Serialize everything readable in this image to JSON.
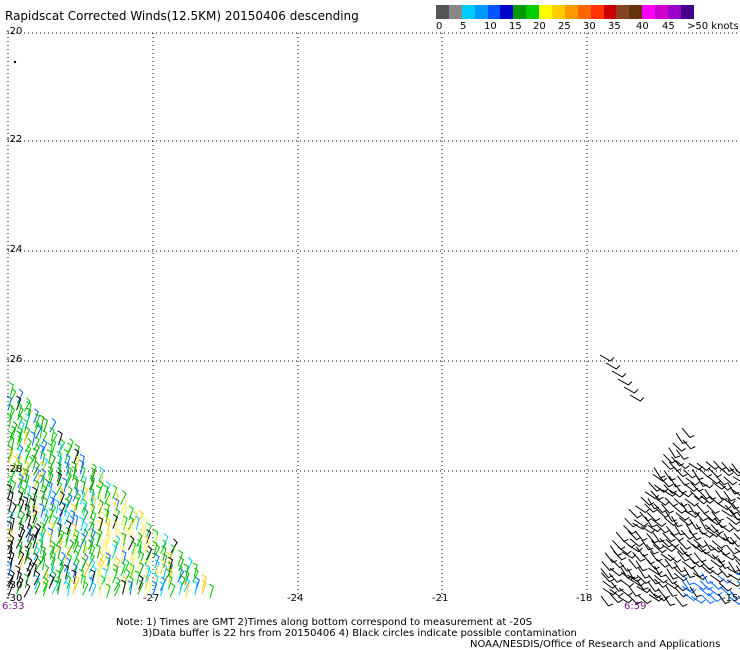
{
  "title": "Rapidscat Corrected Winds(12.5KM) 20150406 descending",
  "scale": {
    "colors": [
      "#555555",
      "#888888",
      "#00ccff",
      "#0099ff",
      "#0055ff",
      "#0000cc",
      "#009900",
      "#00cc00",
      "#ffff00",
      "#ffcc00",
      "#ff9900",
      "#ff6600",
      "#ff3300",
      "#cc0000",
      "#884422",
      "#663311",
      "#ff00ff",
      "#cc00cc",
      "#9900cc",
      "#440088"
    ],
    "labels": [
      "0",
      "5",
      "10",
      "15",
      "20",
      "25",
      "30",
      "35",
      "40",
      "45",
      ">50 knots"
    ]
  },
  "axes": {
    "y_ticks": [
      "-20",
      "-22",
      "-24",
      "-26",
      "-28",
      "-30"
    ],
    "x_ticks": [
      "-27",
      "-24",
      "-21",
      "-18",
      "-15"
    ],
    "x_left_label": "-30"
  },
  "times": {
    "left": "6:33",
    "right": "6:59"
  },
  "notes": {
    "line1": "Note: 1) Times are GMT 2)Times along bottom correspond to measurement at -20S",
    "line2": "3)Data buffer is 22 hrs from 20150406 4) Black circles indicate possible contamination",
    "credit": "NOAA/NESDIS/Office of Research and Applications"
  }
}
